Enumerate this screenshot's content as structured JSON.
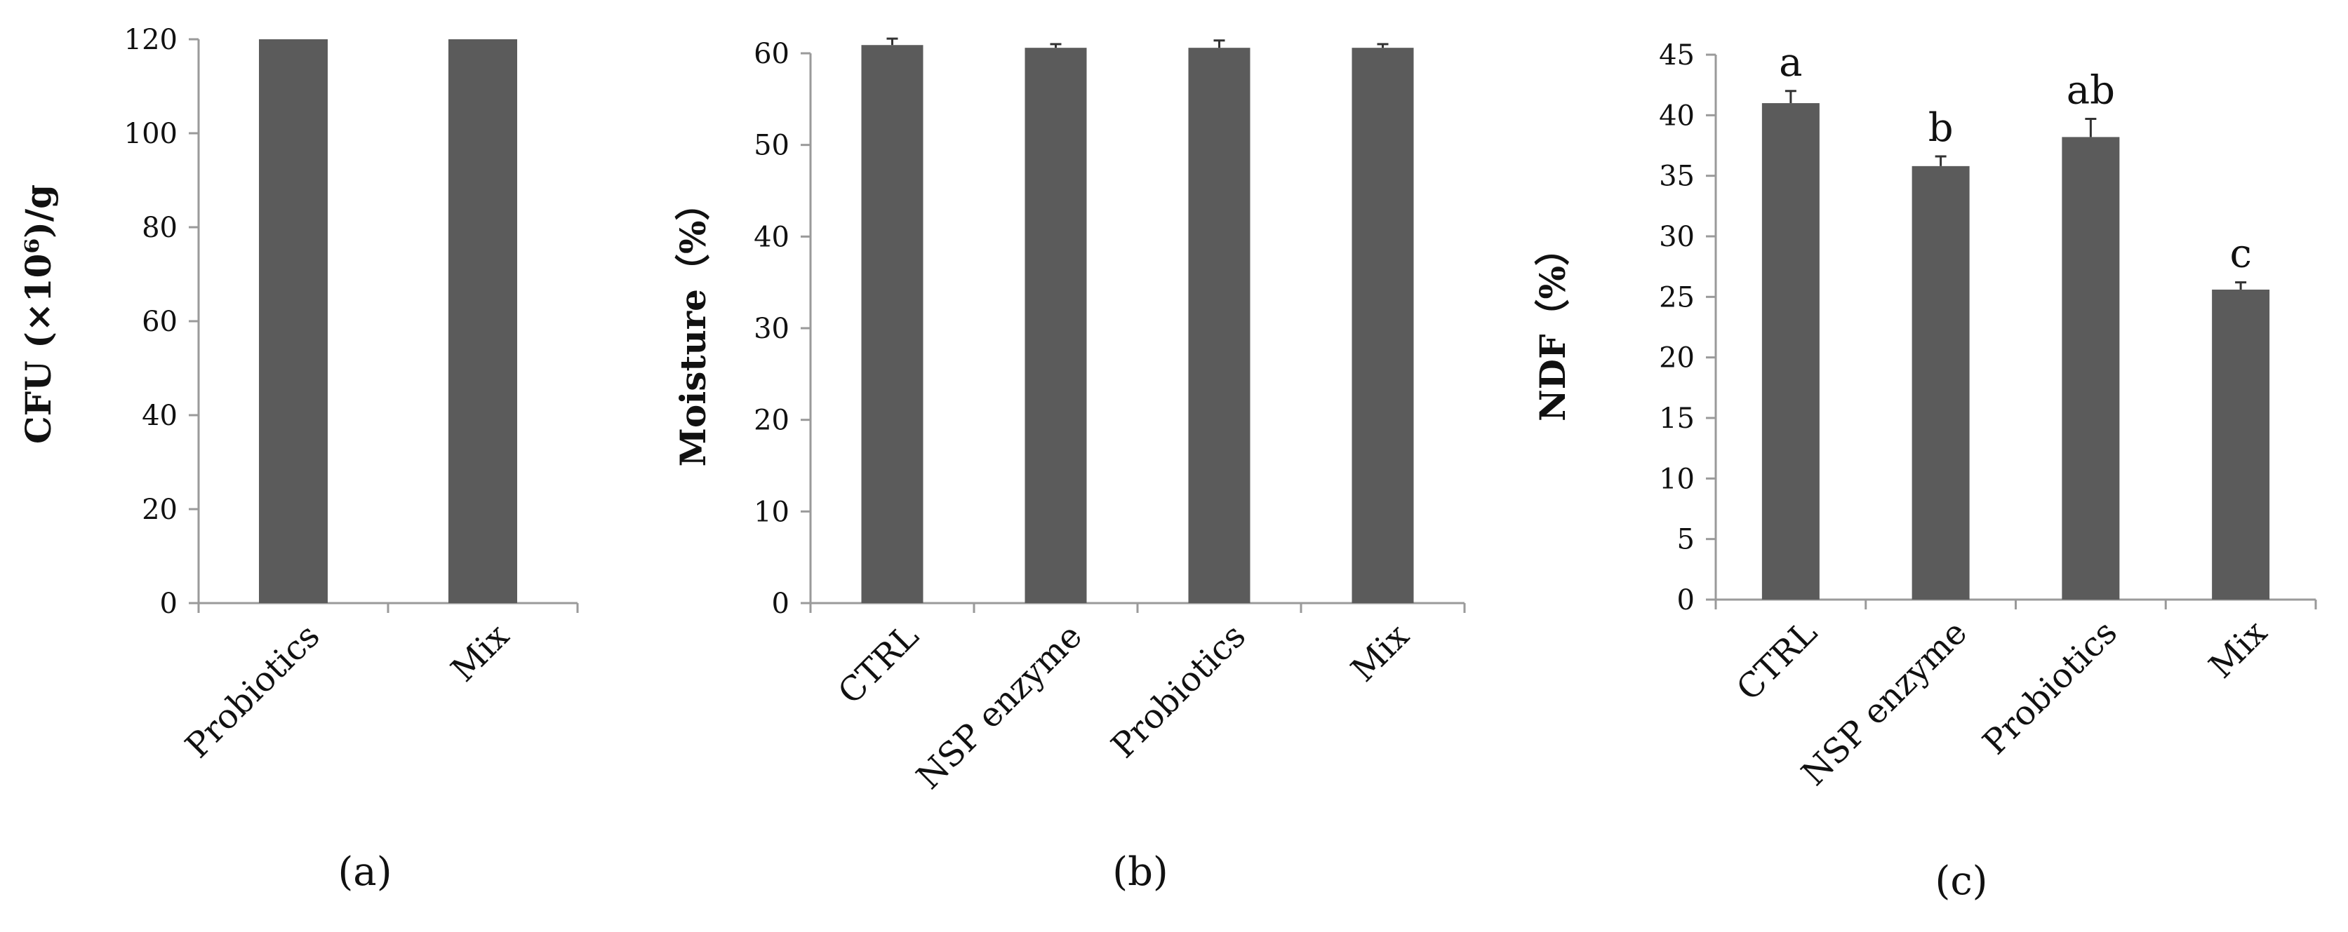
{
  "charts": [
    {
      "caption": "(a)",
      "ylabel": "CFU (×10⁶)/g",
      "chart_data": {
        "type": "bar",
        "title": "",
        "xlabel": "",
        "ylabel": "CFU (×10⁶)/g",
        "categories": [
          "Probiotics",
          "Mix"
        ],
        "values": [
          120,
          120
        ],
        "errors": [
          0,
          0
        ],
        "ylim": [
          0,
          120
        ],
        "yticks": [
          0,
          20,
          40,
          60,
          80,
          100,
          120
        ],
        "significance": [],
        "grid": false,
        "legend": "none",
        "bar_color": "#5b5b5b"
      }
    },
    {
      "caption": "(b)",
      "ylabel": "Moisture（%）",
      "chart_data": {
        "type": "bar",
        "title": "",
        "xlabel": "",
        "ylabel": "Moisture（%）",
        "categories": [
          "CTRL",
          "NSP enzyme",
          "Probiotics",
          "Mix"
        ],
        "values": [
          60.9,
          60.6,
          60.6,
          60.6
        ],
        "errors": [
          0.7,
          0.4,
          0.8,
          0.4
        ],
        "ylim": [
          0,
          60
        ],
        "yticks": [
          0,
          10,
          20,
          30,
          40,
          50,
          60
        ],
        "significance": [],
        "grid": false,
        "legend": "none",
        "bar_color": "#5b5b5b"
      }
    },
    {
      "caption": "(c)",
      "ylabel": "NDF（%）",
      "chart_data": {
        "type": "bar",
        "title": "",
        "xlabel": "",
        "ylabel": "NDF（%）",
        "categories": [
          "CTRL",
          "NSP enzyme",
          "Probiotics",
          "Mix"
        ],
        "values": [
          41.0,
          35.8,
          38.2,
          25.6
        ],
        "errors": [
          1.0,
          0.8,
          1.5,
          0.6
        ],
        "ylim": [
          0,
          45
        ],
        "yticks": [
          0,
          5,
          10,
          15,
          20,
          25,
          30,
          35,
          40,
          45
        ],
        "significance": [
          "a",
          "b",
          "ab",
          "c"
        ],
        "grid": false,
        "legend": "none",
        "bar_color": "#5b5b5b"
      }
    }
  ]
}
